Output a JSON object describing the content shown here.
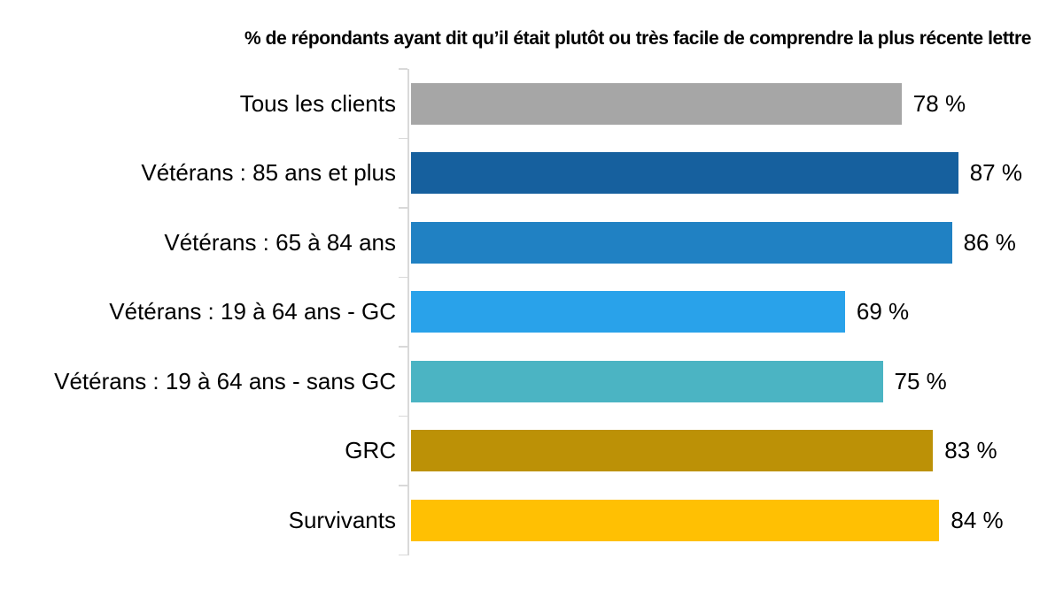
{
  "chart_data": {
    "type": "bar",
    "orientation": "horizontal",
    "title": "% de répondants ayant dit qu’il était plutôt ou très facile de comprendre la plus récente lettre",
    "categories": [
      "Tous les clients",
      "Vétérans : 85 ans et plus",
      "Vétérans : 65 à 84 ans",
      "Vétérans : 19 à 64 ans - GC",
      "Vétérans : 19 à 64 ans - sans GC",
      "GRC",
      "Survivants"
    ],
    "values": [
      78,
      87,
      86,
      69,
      75,
      83,
      84
    ],
    "value_labels": [
      "78 %",
      "87 %",
      "86 %",
      "69 %",
      "75 %",
      "83 %",
      "84 %"
    ],
    "bar_colors": [
      "#A6A6A6",
      "#16609E",
      "#2081C3",
      "#29A2EA",
      "#4BB4C3",
      "#BC9106",
      "#FFC003"
    ],
    "xlim": [
      0,
      100
    ],
    "xlabel": "",
    "ylabel": "",
    "axis_line_color": "#D9D9D9",
    "text_color": "#000000",
    "grid": false,
    "legend": "none"
  }
}
